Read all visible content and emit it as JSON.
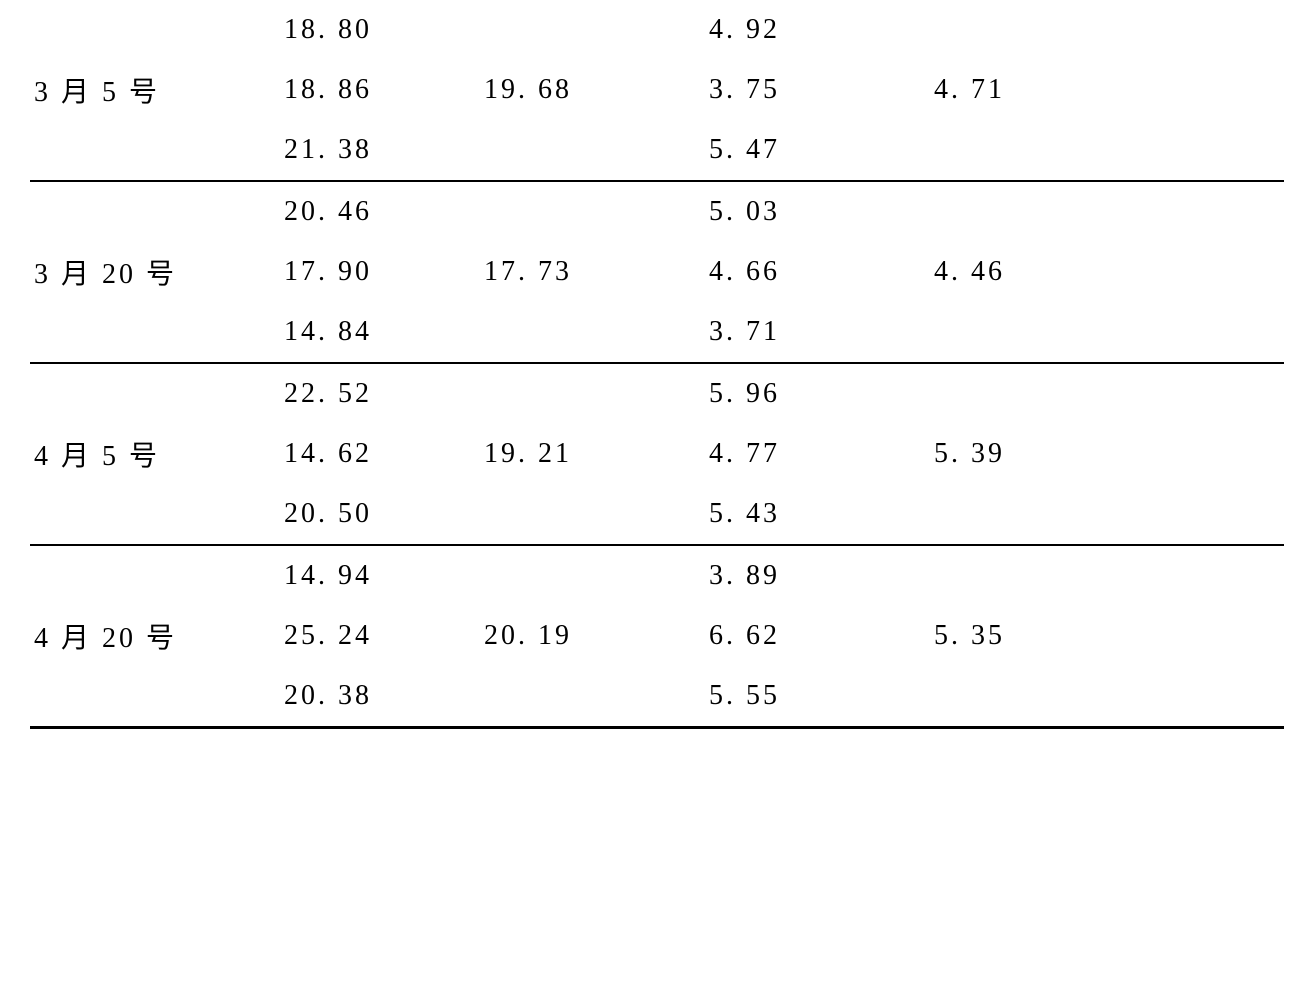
{
  "table": {
    "font_size_pt": 21,
    "text_color": "#000000",
    "background_color": "#ffffff",
    "border_color": "#000000",
    "column_count": 5,
    "groups": [
      {
        "date": "3 月 5 号",
        "col2": [
          "18. 80",
          "18. 86",
          "21. 38"
        ],
        "col3": "19. 68",
        "col4": [
          "4. 92",
          "3. 75",
          "5. 47"
        ],
        "col5": "4. 71"
      },
      {
        "date": "3 月 20 号",
        "col2": [
          "20. 46",
          "17. 90",
          "14. 84"
        ],
        "col3": "17. 73",
        "col4": [
          "5. 03",
          "4. 66",
          "3. 71"
        ],
        "col5": "4. 46"
      },
      {
        "date": "4 月 5 号",
        "col2": [
          "22. 52",
          "14. 62",
          "20. 50"
        ],
        "col3": "19. 21",
        "col4": [
          "5. 96",
          "4. 77",
          "5. 43"
        ],
        "col5": "5. 39"
      },
      {
        "date": "4 月 20 号",
        "col2": [
          "14. 94",
          "25. 24",
          "20. 38"
        ],
        "col3": "20. 19",
        "col4": [
          "3. 89",
          "6. 62",
          "5. 55"
        ],
        "col5": "5. 35"
      }
    ]
  }
}
